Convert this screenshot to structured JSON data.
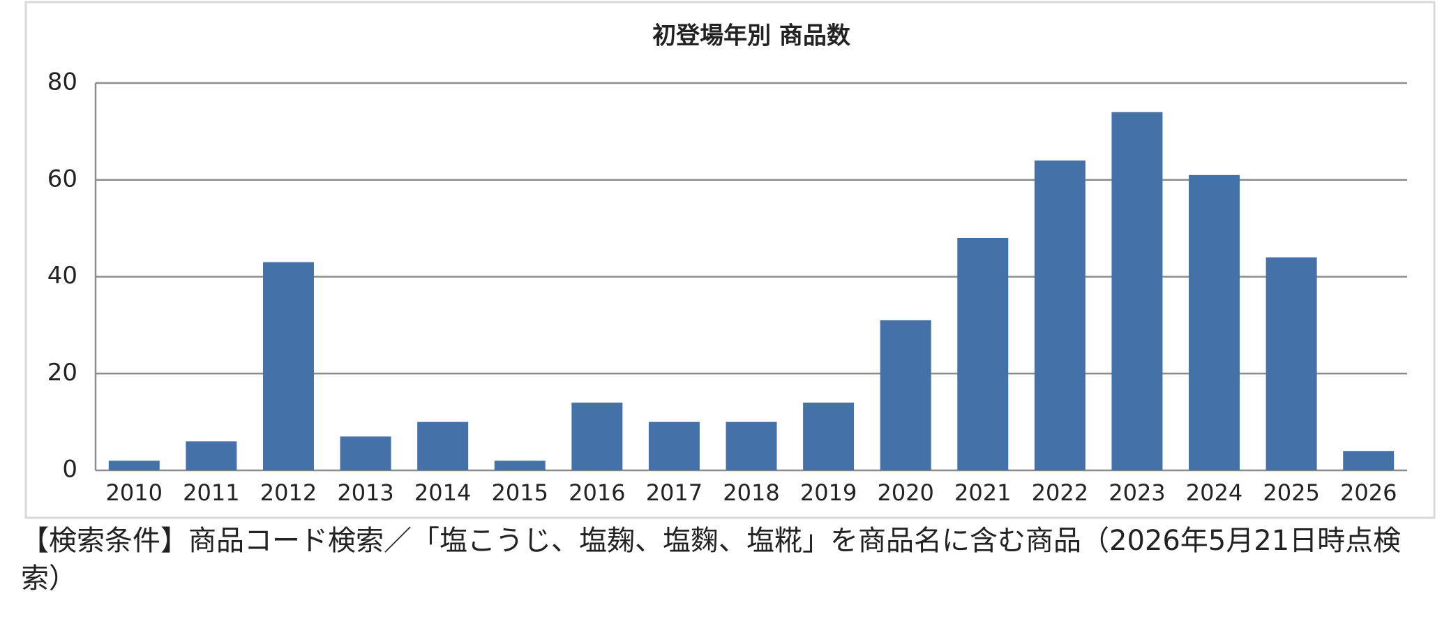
{
  "chart_data": {
    "type": "bar",
    "title": "初登場年別 商品数",
    "categories": [
      "2010",
      "2011",
      "2012",
      "2013",
      "2014",
      "2015",
      "2016",
      "2017",
      "2018",
      "2019",
      "2020",
      "2021",
      "2022",
      "2023",
      "2024",
      "2025",
      "2026"
    ],
    "values": [
      2,
      6,
      43,
      7,
      10,
      2,
      14,
      10,
      10,
      14,
      31,
      48,
      64,
      74,
      61,
      44,
      4
    ],
    "color": "#4472a8",
    "ylim": [
      0,
      80
    ],
    "yticks": [
      0,
      20,
      40,
      60,
      80
    ],
    "grid": true
  },
  "caption": "【検索条件】商品コード検索／「塩こうじ、塩麹、塩麴、塩糀」を商品名に含む商品（2026年5月21日時点検索）"
}
